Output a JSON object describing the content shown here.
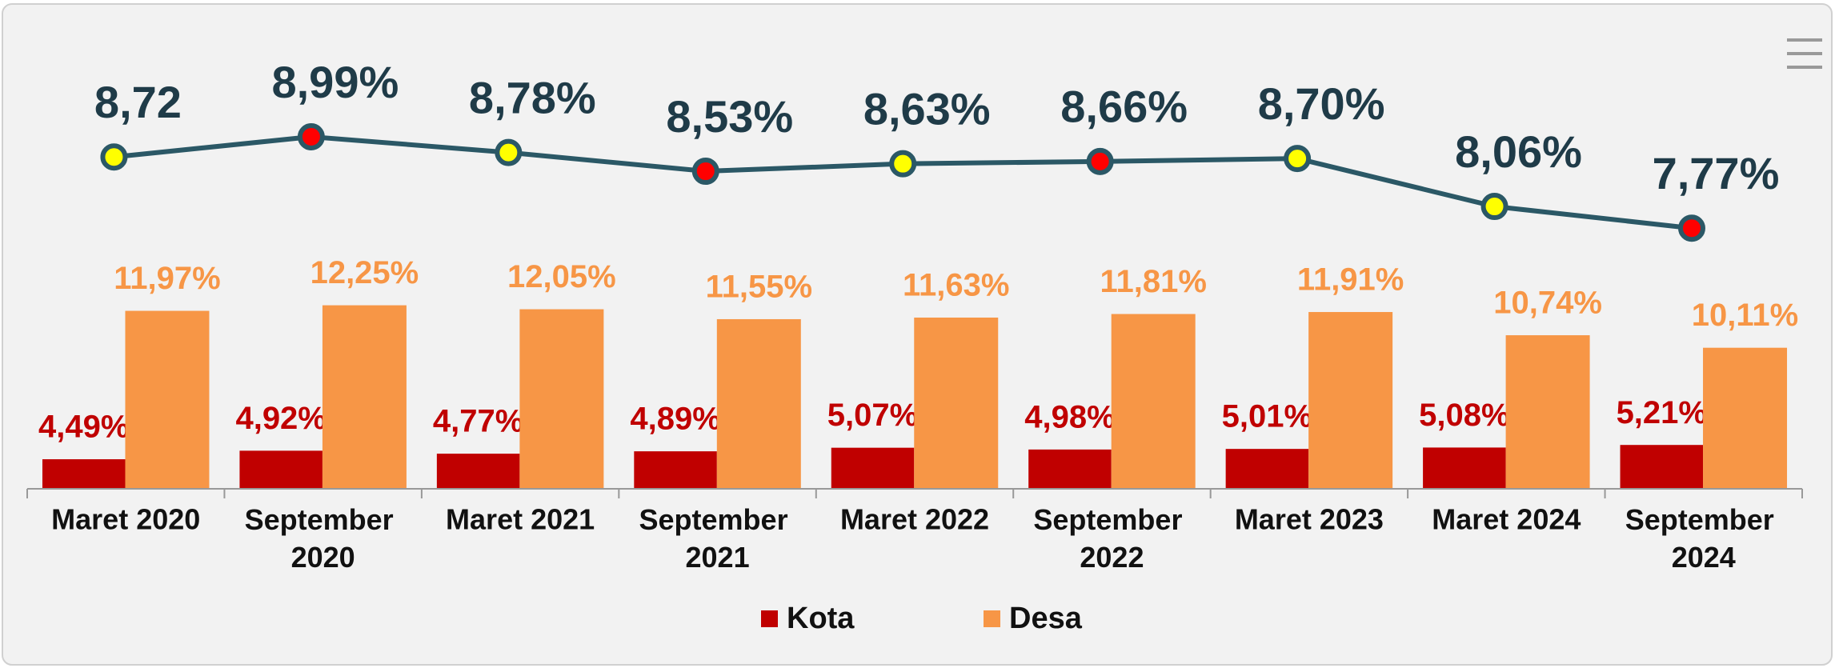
{
  "chart_data": [
    {
      "type": "bar",
      "categories": [
        "Maret 2020",
        "September 2020",
        "Maret 2021",
        "September 2021",
        "Maret 2022",
        "September 2022",
        "Maret 2023",
        "Maret 2024",
        "September 2024"
      ],
      "series": [
        {
          "name": "Kota",
          "color": "#c00000",
          "values": [
            4.49,
            4.92,
            4.77,
            4.89,
            5.07,
            4.98,
            5.01,
            5.08,
            5.21
          ],
          "value_labels": [
            "4,49%",
            "4,92%",
            "4,77%",
            "4,89%",
            "5,07%",
            "4,98%",
            "5,01%",
            "5,08%",
            "5,21%"
          ]
        },
        {
          "name": "Desa",
          "color": "#f79646",
          "values": [
            11.97,
            12.25,
            12.05,
            11.55,
            11.63,
            11.81,
            11.91,
            10.74,
            10.11
          ],
          "value_labels": [
            "11,97%",
            "12,25%",
            "12,05%",
            "11,55%",
            "11,63%",
            "11,81%",
            "11,91%",
            "10,74%",
            "10,11%"
          ]
        }
      ],
      "ylim": [
        3,
        13
      ],
      "legend": "bottom"
    },
    {
      "type": "line",
      "values": [
        8.72,
        8.99,
        8.78,
        8.53,
        8.63,
        8.66,
        8.7,
        8.06,
        7.77
      ],
      "value_labels": [
        "8,72",
        "8,99%",
        "8,78%",
        "8,53%",
        "8,63%",
        "8,66%",
        "8,70%",
        "8,06%",
        "7,77%"
      ],
      "color": "#2b5866",
      "marker_colors": [
        "#ffff00",
        "#ff0000",
        "#ffff00",
        "#ff0000",
        "#ffff00",
        "#ff0000",
        "#ffff00",
        "#ffff00",
        "#ff0000"
      ],
      "ylim": [
        7.5,
        9.2
      ]
    }
  ]
}
